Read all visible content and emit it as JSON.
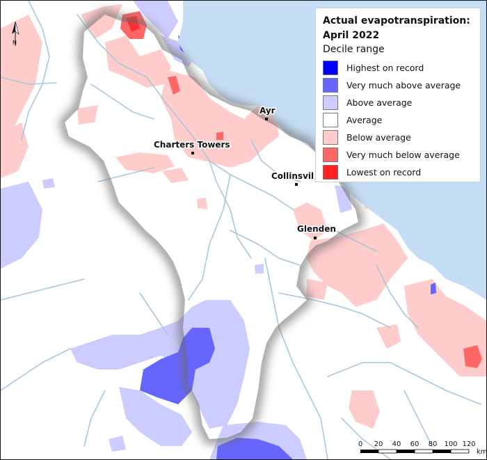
{
  "map": {
    "title": "Actual evapotranspiration:",
    "title_line2": "April 2022",
    "legend_subtitle": "Decile range",
    "legend": [
      {
        "label": "Highest on record",
        "color": "#0000ff"
      },
      {
        "label": "Very much above average",
        "color": "#6666ff"
      },
      {
        "label": "Above average",
        "color": "#ccccff"
      },
      {
        "label": "Average",
        "color": "#ffffff"
      },
      {
        "label": "Below average",
        "color": "#ffcccc"
      },
      {
        "label": "Very much below average",
        "color": "#ff6666"
      },
      {
        "label": "Lowest on record",
        "color": "#ff2020"
      }
    ],
    "towns": [
      "Ayr",
      "Charters Towers",
      "Collinsvil",
      "Glenden"
    ],
    "north_label": "N",
    "scale_ticks": [
      "0",
      "20",
      "40",
      "60",
      "80",
      "100",
      "120"
    ],
    "scale_unit": "km",
    "colors": {
      "sea": "#c5ddf4",
      "river": "#a9c6de",
      "outside_shade": "#d8d8d8"
    }
  }
}
